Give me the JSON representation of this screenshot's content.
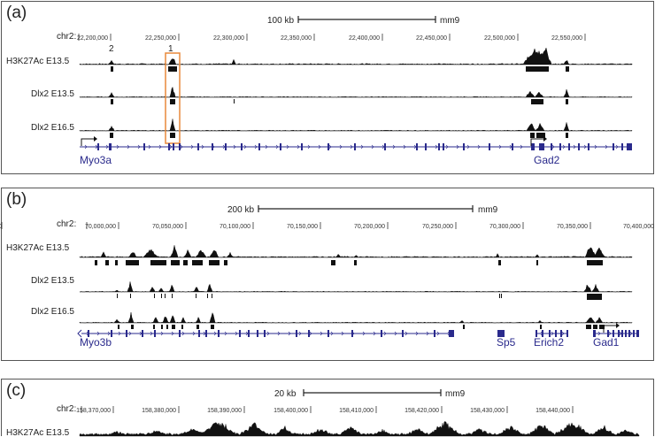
{
  "panels": [
    {
      "id": "a",
      "label": "(a)",
      "scale": {
        "text": "100 kb",
        "assembly": "mm9"
      },
      "chrom": "chr2:",
      "ticks": [
        "22,200,000",
        "22,250,000",
        "22,300,000",
        "22,350,000",
        "22,400,000",
        "22,450,000",
        "22,500,000",
        "22,550,000"
      ],
      "peak_numbers": [
        "2",
        "1"
      ],
      "tracks": [
        "H3K27Ac E13.5",
        "Dlx2 E13.5",
        "Dlx2 E16.5"
      ],
      "genes": [
        "Myo3a",
        "Gad2"
      ],
      "colors": {
        "highlight_box": "#e8893a",
        "gene": "#2a2a8c",
        "signal": "#111111"
      }
    },
    {
      "id": "b",
      "label": "(b)",
      "scale": {
        "text": "200 kb",
        "assembly": "mm9"
      },
      "chrom": "chr2:",
      "ticks": [
        "70,000,000",
        "70,050,000",
        "70,100,000",
        "70,150,000",
        "70,200,000",
        "70,250,000",
        "70,300,000",
        "70,350,000",
        "70,400,000",
        "70,450,000"
      ],
      "tracks": [
        "H3K27Ac E13.5",
        "Dlx2 E13.5",
        "Dlx2 E16.5"
      ],
      "genes": [
        "Myo3b",
        "Sp5",
        "Erich2",
        "Gad1"
      ]
    },
    {
      "id": "c",
      "label": "(c)",
      "scale": {
        "text": "20 kb",
        "assembly": "mm9"
      },
      "chrom": "chr2:",
      "ticks": [
        "158,370,000",
        "158,380,000",
        "158,390,000",
        "158,400,000",
        "158,410,000",
        "158,420,000",
        "158,430,000",
        "158,440,000"
      ],
      "tracks": [
        "H3K27Ac E13.5"
      ]
    }
  ]
}
